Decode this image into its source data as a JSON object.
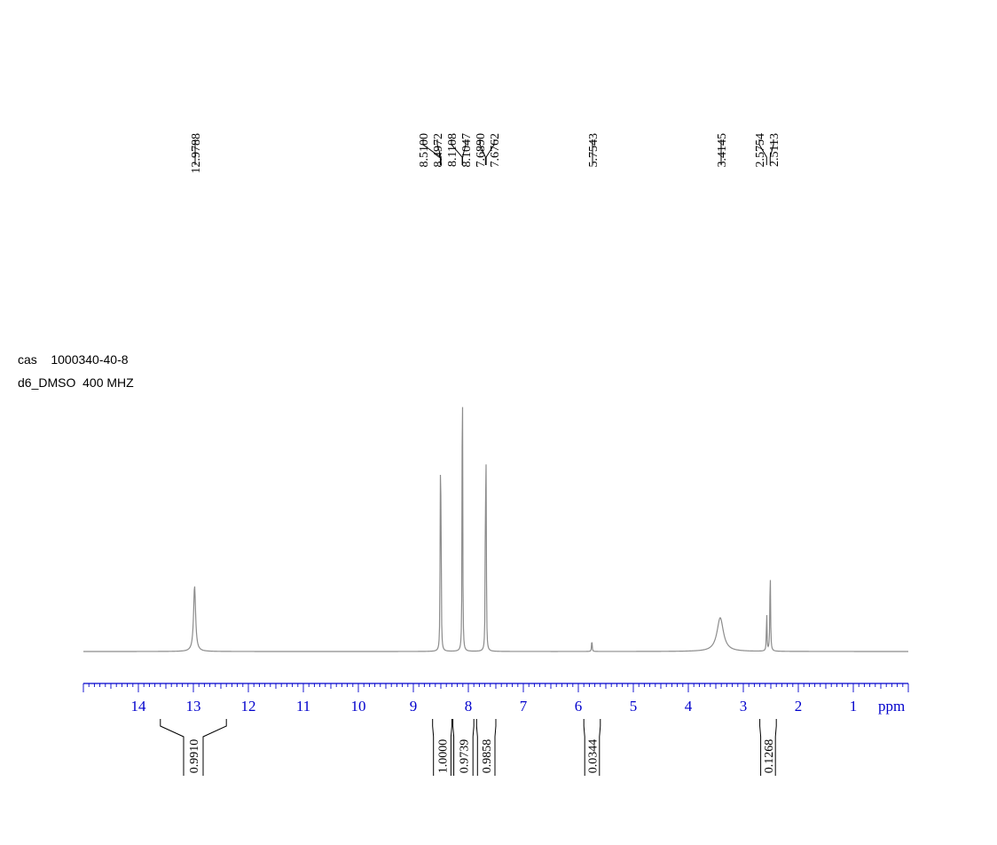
{
  "meta": {
    "line1": "cas    1000340-40-8",
    "line2": "d6_DMSO  400 MHZ"
  },
  "chart_data": {
    "type": "line",
    "title": "",
    "xlabel": "ppm",
    "xlim": [
      15.0,
      0.0
    ],
    "x_reversed": true,
    "ticks": [
      "14",
      "13",
      "12",
      "11",
      "10",
      "9",
      "8",
      "7",
      "6",
      "5",
      "4",
      "3",
      "2",
      "1"
    ],
    "tick_values": [
      14,
      13,
      12,
      11,
      10,
      9,
      8,
      7,
      6,
      5,
      4,
      3,
      2,
      1
    ],
    "peak_labels": [
      "12.9788",
      "8.5100",
      "8.4972",
      "8.1108",
      "8.1047",
      "7.6890",
      "7.6762",
      "5.7543",
      "3.4145",
      "2.5754",
      "2.5113"
    ],
    "peak_ppm": [
      12.9788,
      8.51,
      8.4972,
      8.1108,
      8.1047,
      7.689,
      7.6762,
      5.7543,
      3.4145,
      2.5754,
      2.5113
    ],
    "peaks": [
      {
        "ppm": 12.978,
        "height": 0.37,
        "width": 0.022
      },
      {
        "ppm": 8.51,
        "height": 0.96,
        "width": 0.005
      },
      {
        "ppm": 8.497,
        "height": 0.94,
        "width": 0.005
      },
      {
        "ppm": 8.111,
        "height": 1.0,
        "width": 0.005
      },
      {
        "ppm": 8.105,
        "height": 0.98,
        "width": 0.005
      },
      {
        "ppm": 7.689,
        "height": 0.99,
        "width": 0.005
      },
      {
        "ppm": 7.676,
        "height": 0.97,
        "width": 0.005
      },
      {
        "ppm": 5.754,
        "height": 0.07,
        "width": 0.006
      },
      {
        "ppm": 3.42,
        "height": 0.19,
        "width": 0.07
      },
      {
        "ppm": 2.575,
        "height": 0.23,
        "width": 0.006
      },
      {
        "ppm": 2.511,
        "height": 0.47,
        "width": 0.007
      }
    ],
    "integrals": [
      {
        "value": "0.9910",
        "from": 13.6,
        "to": 12.4
      },
      {
        "value": "1.0000",
        "from": 8.65,
        "to": 8.3
      },
      {
        "value": "0.9739",
        "from": 8.28,
        "to": 7.9
      },
      {
        "value": "0.9858",
        "from": 7.85,
        "to": 7.5
      },
      {
        "value": "0.0344",
        "from": 5.9,
        "to": 5.6
      },
      {
        "value": "0.1268",
        "from": 2.7,
        "to": 2.4
      }
    ],
    "colors": {
      "spectrum": "#8c8c8c",
      "axis": "#0000cc",
      "labels": "#000000"
    },
    "grid": false
  }
}
